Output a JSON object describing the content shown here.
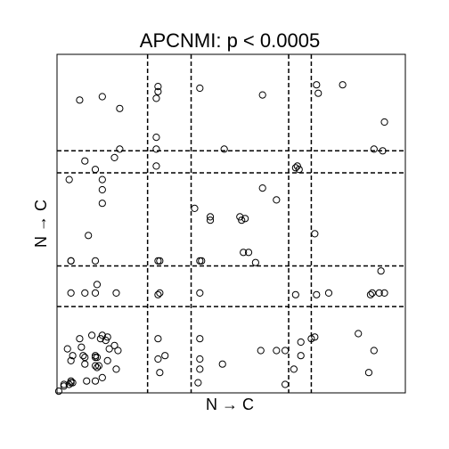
{
  "chart_data": {
    "type": "scatter",
    "title": "APCNMI: p < 0.0005",
    "xlabel": "N → C",
    "ylabel": "N → C",
    "xlim": [
      0,
      1
    ],
    "ylim": [
      0,
      1
    ],
    "grid": false,
    "marker": "open-circle",
    "colors": {
      "points": "#000000",
      "frame": "#000000",
      "dividers": "#000000"
    },
    "vertical_dividers": [
      0.26,
      0.385,
      0.665,
      0.73
    ],
    "horizontal_dividers": [
      0.255,
      0.375,
      0.65,
      0.715
    ],
    "points": [
      [
        0.065,
        0.865
      ],
      [
        0.13,
        0.875
      ],
      [
        0.18,
        0.84
      ],
      [
        0.29,
        0.905
      ],
      [
        0.29,
        0.89
      ],
      [
        0.285,
        0.87
      ],
      [
        0.41,
        0.9
      ],
      [
        0.59,
        0.88
      ],
      [
        0.745,
        0.91
      ],
      [
        0.75,
        0.885
      ],
      [
        0.82,
        0.91
      ],
      [
        0.94,
        0.8
      ],
      [
        0.91,
        0.72
      ],
      [
        0.935,
        0.715
      ],
      [
        0.18,
        0.72
      ],
      [
        0.285,
        0.72
      ],
      [
        0.285,
        0.755
      ],
      [
        0.285,
        0.67
      ],
      [
        0.48,
        0.72
      ],
      [
        0.165,
        0.695
      ],
      [
        0.08,
        0.685
      ],
      [
        0.11,
        0.66
      ],
      [
        0.035,
        0.63
      ],
      [
        0.13,
        0.63
      ],
      [
        0.13,
        0.6
      ],
      [
        0.13,
        0.56
      ],
      [
        0.685,
        0.665
      ],
      [
        0.69,
        0.67
      ],
      [
        0.695,
        0.66
      ],
      [
        0.59,
        0.605
      ],
      [
        0.63,
        0.57
      ],
      [
        0.395,
        0.545
      ],
      [
        0.44,
        0.52
      ],
      [
        0.44,
        0.51
      ],
      [
        0.525,
        0.52
      ],
      [
        0.53,
        0.51
      ],
      [
        0.54,
        0.515
      ],
      [
        0.535,
        0.415
      ],
      [
        0.55,
        0.415
      ],
      [
        0.57,
        0.385
      ],
      [
        0.74,
        0.47
      ],
      [
        0.09,
        0.465
      ],
      [
        0.04,
        0.39
      ],
      [
        0.04,
        0.39
      ],
      [
        0.11,
        0.39
      ],
      [
        0.29,
        0.39
      ],
      [
        0.295,
        0.39
      ],
      [
        0.41,
        0.39
      ],
      [
        0.415,
        0.39
      ],
      [
        0.93,
        0.36
      ],
      [
        0.04,
        0.295
      ],
      [
        0.08,
        0.295
      ],
      [
        0.11,
        0.295
      ],
      [
        0.115,
        0.32
      ],
      [
        0.17,
        0.295
      ],
      [
        0.29,
        0.29
      ],
      [
        0.295,
        0.295
      ],
      [
        0.41,
        0.295
      ],
      [
        0.685,
        0.29
      ],
      [
        0.745,
        0.29
      ],
      [
        0.78,
        0.295
      ],
      [
        0.9,
        0.29
      ],
      [
        0.905,
        0.295
      ],
      [
        0.925,
        0.295
      ],
      [
        0.94,
        0.295
      ],
      [
        0.29,
        0.16
      ],
      [
        0.29,
        0.1
      ],
      [
        0.295,
        0.06
      ],
      [
        0.31,
        0.11
      ],
      [
        0.41,
        0.16
      ],
      [
        0.41,
        0.1
      ],
      [
        0.41,
        0.07
      ],
      [
        0.405,
        0.03
      ],
      [
        0.475,
        0.085
      ],
      [
        0.585,
        0.125
      ],
      [
        0.63,
        0.125
      ],
      [
        0.655,
        0.125
      ],
      [
        0.655,
        0.025
      ],
      [
        0.68,
        0.07
      ],
      [
        0.7,
        0.15
      ],
      [
        0.7,
        0.11
      ],
      [
        0.73,
        0.16
      ],
      [
        0.74,
        0.165
      ],
      [
        0.865,
        0.175
      ],
      [
        0.91,
        0.125
      ],
      [
        0.895,
        0.06
      ],
      [
        0.03,
        0.13
      ],
      [
        0.04,
        0.095
      ],
      [
        0.045,
        0.11
      ],
      [
        0.065,
        0.16
      ],
      [
        0.07,
        0.135
      ],
      [
        0.075,
        0.11
      ],
      [
        0.08,
        0.105
      ],
      [
        0.08,
        0.085
      ],
      [
        0.11,
        0.11
      ],
      [
        0.11,
        0.105
      ],
      [
        0.115,
        0.105
      ],
      [
        0.11,
        0.08
      ],
      [
        0.115,
        0.075
      ],
      [
        0.12,
        0.08
      ],
      [
        0.125,
        0.16
      ],
      [
        0.14,
        0.155
      ],
      [
        0.15,
        0.13
      ],
      [
        0.165,
        0.14
      ],
      [
        0.175,
        0.125
      ],
      [
        0.1,
        0.17
      ],
      [
        0.13,
        0.17
      ],
      [
        0.145,
        0.165
      ],
      [
        0.145,
        0.095
      ],
      [
        0.17,
        0.07
      ],
      [
        0.13,
        0.045
      ],
      [
        0.11,
        0.035
      ],
      [
        0.085,
        0.035
      ],
      [
        0.04,
        0.03
      ],
      [
        0.045,
        0.03
      ],
      [
        0.035,
        0.025
      ],
      [
        0.04,
        0.035
      ],
      [
        0.02,
        0.025
      ],
      [
        0.02,
        0.02
      ],
      [
        0.005,
        0.005
      ]
    ]
  }
}
